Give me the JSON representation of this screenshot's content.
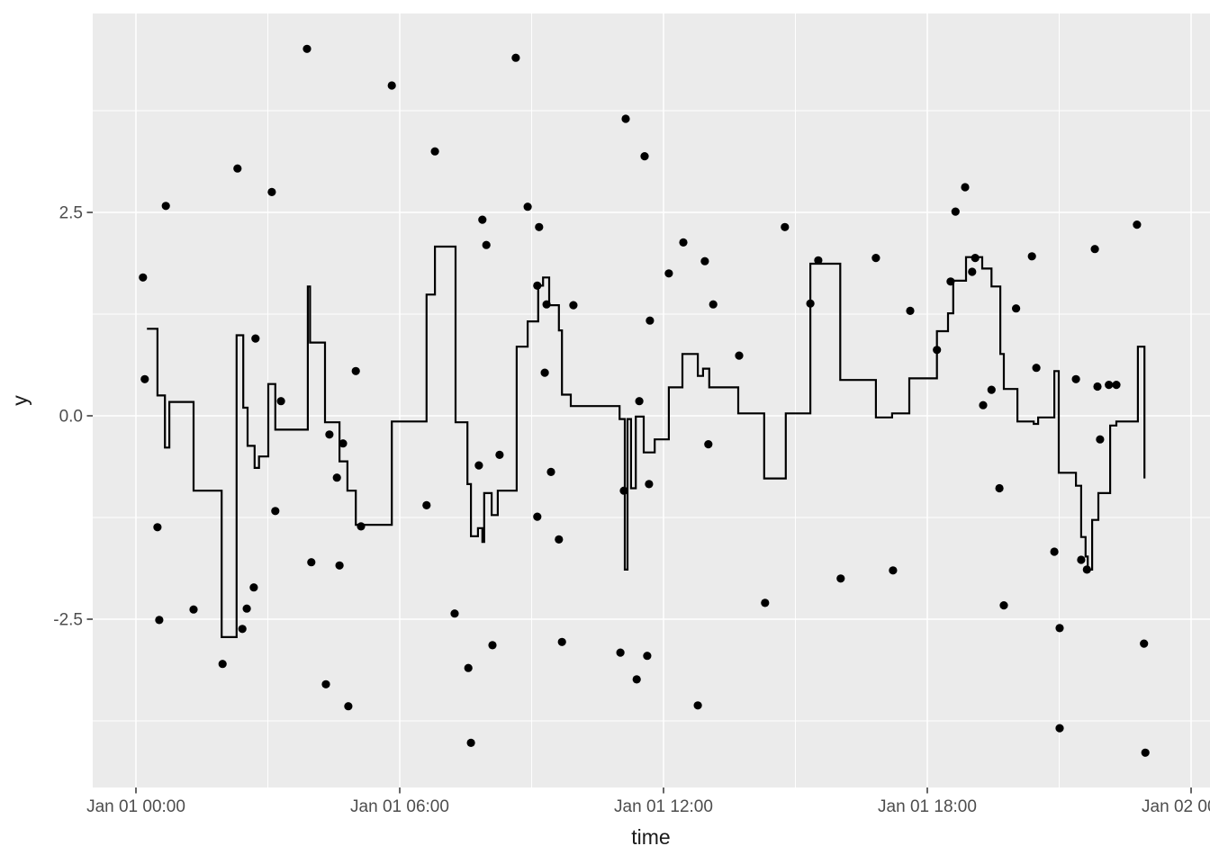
{
  "chart_data": {
    "type": "line",
    "subtype": "step-line-with-scatter",
    "title": "",
    "xlabel": "time",
    "ylabel": "y",
    "x_axis": {
      "unit": "hours since Jan 01 00:00",
      "major_ticks": [
        {
          "t": 0,
          "label": "Jan 01 00:00"
        },
        {
          "t": 6,
          "label": "Jan 01 06:00"
        },
        {
          "t": 12,
          "label": "Jan 01 12:00"
        },
        {
          "t": 18,
          "label": "Jan 01 18:00"
        },
        {
          "t": 24,
          "label": "Jan 02 00:00"
        }
      ],
      "minor_ticks": [
        3,
        9,
        15,
        21
      ],
      "range_hours": [
        -0.98,
        24.43
      ]
    },
    "y_axis": {
      "major_ticks": [
        {
          "v": 2.5,
          "label": "2.5"
        },
        {
          "v": 0.0,
          "label": "0.0"
        },
        {
          "v": -2.5,
          "label": "-2.5"
        }
      ],
      "minor_ticks": [
        3.75,
        1.25,
        -1.25,
        -3.75
      ],
      "range": [
        -4.57,
        4.94
      ]
    },
    "grid": {
      "major": true,
      "minor": true
    },
    "legend": "none",
    "series": [
      {
        "name": "step-line",
        "type": "step",
        "points_t_v": [
          [
            0.25,
            1.07
          ],
          [
            0.49,
            0.25
          ],
          [
            0.66,
            -0.39
          ],
          [
            0.76,
            0.17
          ],
          [
            1.31,
            -0.92
          ],
          [
            1.95,
            -2.72
          ],
          [
            2.29,
            0.99
          ],
          [
            2.44,
            0.1
          ],
          [
            2.54,
            -0.37
          ],
          [
            2.7,
            -0.64
          ],
          [
            2.8,
            -0.5
          ],
          [
            3.01,
            0.39
          ],
          [
            3.17,
            -0.17
          ],
          [
            3.91,
            1.59
          ],
          [
            3.96,
            0.9
          ],
          [
            4.3,
            -0.08
          ],
          [
            4.63,
            -0.56
          ],
          [
            4.81,
            -0.92
          ],
          [
            5.0,
            -1.34
          ],
          [
            5.82,
            -0.07
          ],
          [
            6.61,
            1.49
          ],
          [
            6.8,
            2.08
          ],
          [
            7.27,
            -0.08
          ],
          [
            7.54,
            -0.84
          ],
          [
            7.62,
            -1.48
          ],
          [
            7.78,
            -1.38
          ],
          [
            7.88,
            -1.55
          ],
          [
            7.92,
            -0.95
          ],
          [
            8.09,
            -1.22
          ],
          [
            8.23,
            -0.92
          ],
          [
            8.66,
            0.85
          ],
          [
            8.91,
            1.16
          ],
          [
            9.15,
            1.6
          ],
          [
            9.26,
            1.7
          ],
          [
            9.4,
            1.36
          ],
          [
            9.62,
            1.05
          ],
          [
            9.69,
            0.26
          ],
          [
            9.89,
            0.12
          ],
          [
            11.0,
            -0.04
          ],
          [
            11.12,
            -1.89
          ],
          [
            11.18,
            -0.04
          ],
          [
            11.26,
            -0.89
          ],
          [
            11.37,
            -0.01
          ],
          [
            11.55,
            -0.45
          ],
          [
            11.8,
            -0.29
          ],
          [
            12.12,
            0.35
          ],
          [
            12.43,
            0.76
          ],
          [
            12.78,
            0.49
          ],
          [
            12.9,
            0.58
          ],
          [
            13.04,
            0.35
          ],
          [
            13.7,
            0.03
          ],
          [
            14.29,
            -0.77
          ],
          [
            14.78,
            0.03
          ],
          [
            15.34,
            1.87
          ],
          [
            16.02,
            0.44
          ],
          [
            16.83,
            -0.02
          ],
          [
            17.2,
            0.03
          ],
          [
            17.59,
            0.46
          ],
          [
            18.22,
            1.04
          ],
          [
            18.47,
            1.26
          ],
          [
            18.59,
            1.66
          ],
          [
            18.88,
            1.95
          ],
          [
            19.25,
            1.81
          ],
          [
            19.46,
            1.59
          ],
          [
            19.66,
            0.76
          ],
          [
            19.74,
            0.33
          ],
          [
            20.05,
            -0.07
          ],
          [
            20.42,
            -0.1
          ],
          [
            20.52,
            -0.02
          ],
          [
            20.89,
            0.55
          ],
          [
            20.99,
            -0.7
          ],
          [
            21.38,
            -0.86
          ],
          [
            21.5,
            -1.49
          ],
          [
            21.6,
            -1.73
          ],
          [
            21.65,
            -1.89
          ],
          [
            21.75,
            -1.28
          ],
          [
            21.89,
            -0.95
          ],
          [
            22.16,
            -0.12
          ],
          [
            22.3,
            -0.07
          ],
          [
            22.79,
            0.85
          ],
          [
            22.94,
            -0.77
          ]
        ]
      },
      {
        "name": "scatter-points",
        "type": "scatter",
        "points_t_v": [
          [
            0.16,
            1.7
          ],
          [
            0.2,
            0.45
          ],
          [
            0.49,
            -1.37
          ],
          [
            0.53,
            -2.51
          ],
          [
            0.68,
            2.58
          ],
          [
            1.31,
            -2.38
          ],
          [
            1.97,
            -3.05
          ],
          [
            2.31,
            3.04
          ],
          [
            2.42,
            -2.62
          ],
          [
            2.52,
            -2.37
          ],
          [
            2.68,
            -2.11
          ],
          [
            2.72,
            0.95
          ],
          [
            3.09,
            2.75
          ],
          [
            3.17,
            -1.17
          ],
          [
            3.3,
            0.18
          ],
          [
            3.89,
            4.51
          ],
          [
            3.99,
            -1.8
          ],
          [
            4.32,
            -3.3
          ],
          [
            4.4,
            -0.23
          ],
          [
            4.57,
            -0.76
          ],
          [
            4.63,
            -1.84
          ],
          [
            4.71,
            -0.34
          ],
          [
            4.83,
            -3.57
          ],
          [
            5.0,
            0.55
          ],
          [
            5.12,
            -1.36
          ],
          [
            5.82,
            4.06
          ],
          [
            6.61,
            -1.1
          ],
          [
            6.8,
            3.25
          ],
          [
            7.25,
            -2.43
          ],
          [
            7.56,
            -3.1
          ],
          [
            7.62,
            -4.02
          ],
          [
            7.8,
            -0.61
          ],
          [
            7.88,
            2.41
          ],
          [
            7.97,
            2.1
          ],
          [
            8.11,
            -2.82
          ],
          [
            8.27,
            -0.48
          ],
          [
            8.64,
            4.4
          ],
          [
            8.91,
            2.57
          ],
          [
            9.13,
            1.6
          ],
          [
            9.13,
            -1.24
          ],
          [
            9.17,
            2.32
          ],
          [
            9.3,
            0.53
          ],
          [
            9.34,
            1.37
          ],
          [
            9.44,
            -0.69
          ],
          [
            9.62,
            -1.52
          ],
          [
            9.69,
            -2.78
          ],
          [
            9.95,
            1.36
          ],
          [
            11.02,
            -2.91
          ],
          [
            11.1,
            -0.92
          ],
          [
            11.14,
            3.65
          ],
          [
            11.39,
            -3.24
          ],
          [
            11.45,
            0.18
          ],
          [
            11.57,
            3.19
          ],
          [
            11.63,
            -2.95
          ],
          [
            11.67,
            -0.84
          ],
          [
            11.69,
            1.17
          ],
          [
            12.12,
            1.75
          ],
          [
            12.45,
            2.13
          ],
          [
            12.78,
            -3.56
          ],
          [
            12.94,
            1.9
          ],
          [
            13.02,
            -0.35
          ],
          [
            13.13,
            1.37
          ],
          [
            13.72,
            0.74
          ],
          [
            14.31,
            -2.3
          ],
          [
            14.76,
            2.32
          ],
          [
            15.34,
            1.38
          ],
          [
            15.52,
            1.91
          ],
          [
            16.03,
            -2.0
          ],
          [
            16.83,
            1.94
          ],
          [
            17.22,
            -1.9
          ],
          [
            17.61,
            1.29
          ],
          [
            18.22,
            0.81
          ],
          [
            18.53,
            1.65
          ],
          [
            18.64,
            2.51
          ],
          [
            18.86,
            2.81
          ],
          [
            19.02,
            1.77
          ],
          [
            19.09,
            1.94
          ],
          [
            19.27,
            0.13
          ],
          [
            19.46,
            0.32
          ],
          [
            19.64,
            -0.89
          ],
          [
            19.74,
            -2.33
          ],
          [
            20.02,
            1.32
          ],
          [
            20.38,
            1.96
          ],
          [
            20.48,
            0.59
          ],
          [
            20.89,
            -1.67
          ],
          [
            21.01,
            -2.61
          ],
          [
            21.01,
            -3.84
          ],
          [
            21.38,
            0.45
          ],
          [
            21.5,
            -1.77
          ],
          [
            21.63,
            -1.89
          ],
          [
            21.81,
            2.05
          ],
          [
            21.87,
            0.36
          ],
          [
            21.93,
            -0.29
          ],
          [
            22.13,
            0.38
          ],
          [
            22.3,
            0.38
          ],
          [
            22.77,
            2.35
          ],
          [
            22.93,
            -2.8
          ],
          [
            22.96,
            -4.14
          ]
        ]
      }
    ],
    "colors": {
      "panel_background": "#EBEBEB",
      "grid_line": "#FFFFFF",
      "step_line": "#000000",
      "point": "#000000",
      "tick_text": "#4D4D4D",
      "axis_title_text": "#1A1A1A",
      "tick_mark": "#333333",
      "figure_background": "#FFFFFF"
    }
  }
}
